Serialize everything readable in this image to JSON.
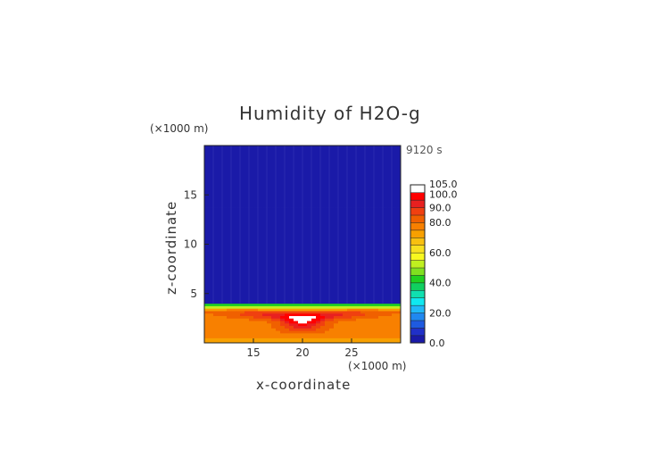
{
  "chart_data": {
    "type": "heatmap",
    "title": "Humidity of H2O-g",
    "xlabel": "x-coordinate",
    "ylabel": "z-coordinate",
    "x_unit": "(×1000 m)",
    "z_unit": "(×1000 m)",
    "time_label": "9120 s",
    "xlim": [
      10,
      30
    ],
    "zlim": [
      0,
      20
    ],
    "x_ticks": [
      15,
      20,
      25
    ],
    "z_ticks": [
      5,
      10,
      15
    ],
    "colorbar": {
      "levels": [
        0,
        5,
        10,
        15,
        20,
        25,
        30,
        35,
        40,
        45,
        50,
        55,
        60,
        65,
        70,
        75,
        80,
        85,
        90,
        95,
        100,
        105
      ],
      "labels": [
        "0.0",
        "20.0",
        "40.0",
        "60.0",
        "80.0",
        "90.0",
        "100.0",
        "105.0"
      ],
      "colors": [
        "#1a1aa8",
        "#2030c8",
        "#1e5ae0",
        "#2088f0",
        "#20b8f8",
        "#10e8f0",
        "#10e0b0",
        "#10d060",
        "#20d020",
        "#80e020",
        "#c0f020",
        "#f8f820",
        "#f8e020",
        "#f8c010",
        "#f8a000",
        "#f88000",
        "#f06000",
        "#f04010",
        "#e82020",
        "#ff0000",
        "#ffffff"
      ]
    },
    "field_description_values": {
      "upper_region_value": 2,
      "boundary_z": 4,
      "core_center_x": 20,
      "core_center_z": 2,
      "core_max": 100
    }
  }
}
